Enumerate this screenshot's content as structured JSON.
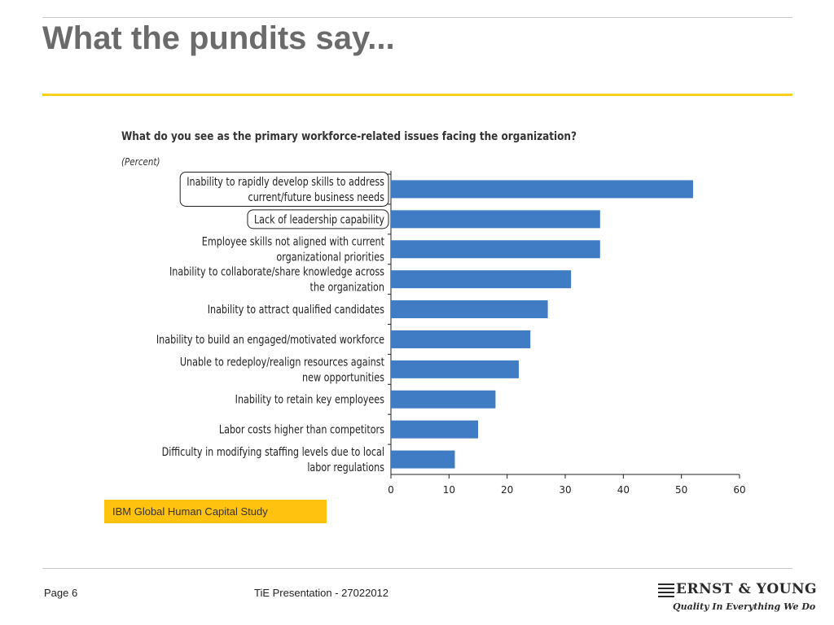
{
  "slide": {
    "title": "What the pundits say...",
    "source": "IBM Global Human Capital Study",
    "footer_page": "Page 6",
    "footer_presentation": "TiE Presentation - 27022012",
    "logo_name": "ERNST & YOUNG",
    "logo_tagline": "Quality In Everything We Do"
  },
  "colors": {
    "accent_yellow": "#f5d11a",
    "source_box": "#ffc20e",
    "bar": "#3f7cc4",
    "title_gray": "#6b6b6b"
  },
  "chart_data": {
    "type": "bar",
    "orientation": "horizontal",
    "title": "What do you see as the primary workforce-related issues facing the organization?",
    "unit_label": "(Percent)",
    "categories": [
      [
        "Inability to rapidly develop skills to address",
        "current/future business needs"
      ],
      [
        "Lack of leadership capability"
      ],
      [
        "Employee skills not aligned with current",
        "organizational priorities"
      ],
      [
        "Inability to collaborate/share knowledge across",
        "the organization"
      ],
      [
        "Inability to attract qualified candidates"
      ],
      [
        "Inability to build an engaged/motivated workforce"
      ],
      [
        "Unable to redeploy/realign resources against",
        "new opportunities"
      ],
      [
        "Inability to retain key employees"
      ],
      [
        "Labor costs higher than competitors"
      ],
      [
        "Difficulty in modifying staffing levels due to local",
        "labor regulations"
      ]
    ],
    "values": [
      52,
      36,
      36,
      31,
      27,
      24,
      22,
      18,
      15,
      11
    ],
    "highlighted_categories": [
      0,
      1
    ],
    "xlim": [
      0,
      60
    ],
    "xticks": [
      0,
      10,
      20,
      30,
      40,
      50,
      60
    ],
    "grid": false
  }
}
